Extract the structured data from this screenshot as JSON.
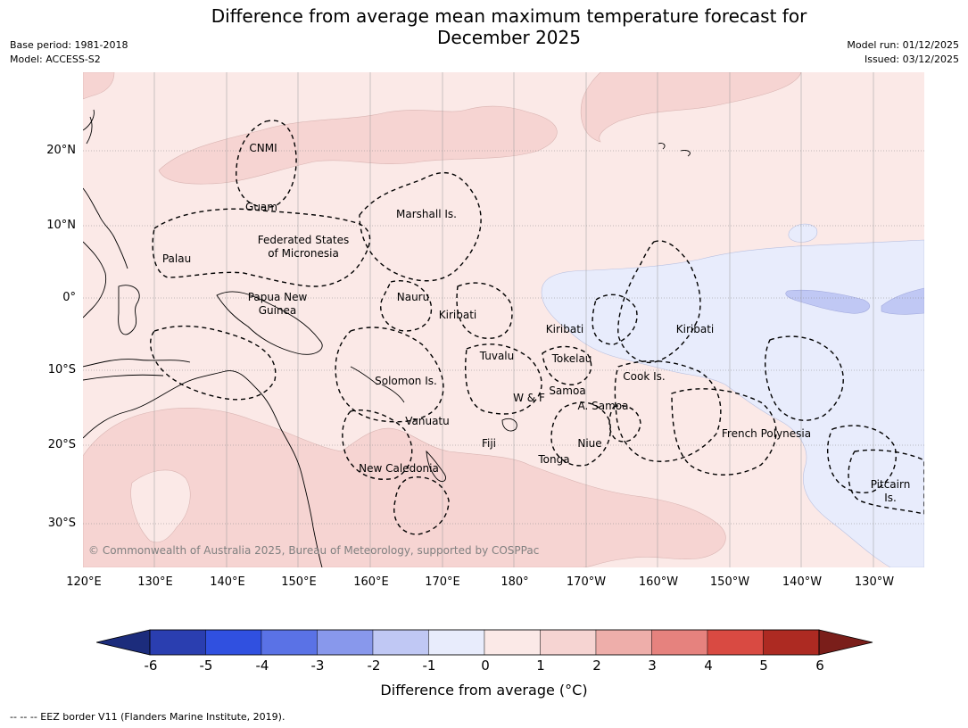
{
  "header": {
    "title_line1": "Difference from average mean maximum temperature forecast for",
    "title_line2": "December 2025",
    "base_period": "Base period: 1981-2018",
    "model": "Model: ACCESS-S2",
    "model_run": "Model run: 01/12/2025",
    "issued": "Issued: 03/12/2025"
  },
  "map": {
    "lat_labels": [
      "20°N",
      "10°N",
      "0°",
      "10°S",
      "20°S",
      "30°S"
    ],
    "lon_labels": [
      "120°E",
      "130°E",
      "140°E",
      "150°E",
      "160°E",
      "170°E",
      "180°",
      "170°W",
      "160°W",
      "150°W",
      "140°W",
      "130°W"
    ],
    "regions": {
      "cnmi": "CNMI",
      "guam": "Guam",
      "marshall": "Marshall Is.",
      "fsm_1": "Federated States",
      "fsm_2": "of Micronesia",
      "palau": "Palau",
      "png_1": "Papua New",
      "png_2": "Guinea",
      "nauru": "Nauru",
      "kiribati_w": "Kiribati",
      "kiribati_c": "Kiribati",
      "kiribati_e": "Kiribati",
      "tuvalu": "Tuvalu",
      "tokelau": "Tokelau",
      "cook": "Cook Is.",
      "solomon": "Solomon Is.",
      "samoa": "Samoa",
      "wf": "W & F",
      "asamoa": "A. Samoa",
      "vanuatu": "Vanuatu",
      "fiji": "Fiji",
      "niue": "Niue",
      "french_polynesia": "French Polynesia",
      "tonga": "Tonga",
      "new_caledonia": "New Caledonia",
      "pitcairn_1": "Pitcairn",
      "pitcairn_2": "Is."
    },
    "copyright": "© Commonwealth of Australia 2025, Bureau of Meteorology, supported by COSPPac"
  },
  "legend": {
    "ticks": [
      "-6",
      "-5",
      "-4",
      "-3",
      "-2",
      "-1",
      "0",
      "1",
      "2",
      "3",
      "4",
      "5",
      "6"
    ],
    "colors": [
      "#1c2c7c",
      "#2a3eb0",
      "#3050e0",
      "#5a72e6",
      "#8898ec",
      "#c0c8f4",
      "#e8ecfc",
      "#fbe9e7",
      "#f6d4d2",
      "#eeaeaa",
      "#e6827e",
      "#d94a42",
      "#ad2a22",
      "#7a1e1a"
    ],
    "label": "Difference from average (°C)"
  },
  "footnote": "--  --  -- EEZ border V11 (Flanders Marine Institute, 2019)."
}
